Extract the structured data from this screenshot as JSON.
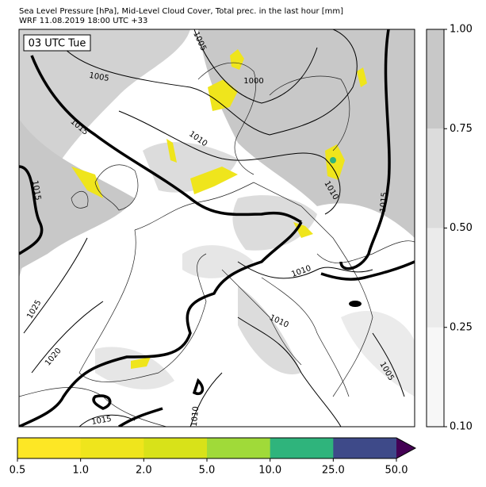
{
  "header": {
    "title": "Sea Level Pressure [hPa], Mid-Level Cloud Cover, Total prec. in the last hour [mm]",
    "subtitle": "WRF 11.08.2019 18:00 UTC +33"
  },
  "map": {
    "time_label": "03 UTC Tue",
    "isobar_labels": [
      "1005",
      "1005",
      "1000",
      "1015",
      "1010",
      "1015",
      "1010",
      "1015",
      "1010",
      "1010",
      "1025",
      "1020",
      "1005",
      "1015",
      "1010"
    ]
  },
  "cloud_colorbar": {
    "ticks": [
      {
        "value": 0.1,
        "label": "0.10"
      },
      0.25,
      {
        "value": 0.5,
        "label": "0.50"
      },
      0.75,
      {
        "value": 1,
        "label": "1.00"
      }
    ],
    "colors": [
      "#f7f7f7",
      "#ebebeb",
      "#dcdcdc",
      "#c8c8c8"
    ]
  },
  "precip_colorbar": {
    "ticks": [
      0.5,
      {
        "value": 1,
        "label": "1.0"
      },
      {
        "value": 2,
        "label": "2.0"
      },
      {
        "value": 5,
        "label": "5.0"
      },
      {
        "value": 10,
        "label": "10.0"
      },
      {
        "value": 25,
        "label": "25.0"
      },
      {
        "value": 50,
        "label": "50.0"
      }
    ],
    "colors": [
      "#fde725",
      "#efe51c",
      "#d8e219",
      "#a0da39",
      "#2fb47c",
      "#3e4a89"
    ],
    "extend_color": "#440154"
  }
}
